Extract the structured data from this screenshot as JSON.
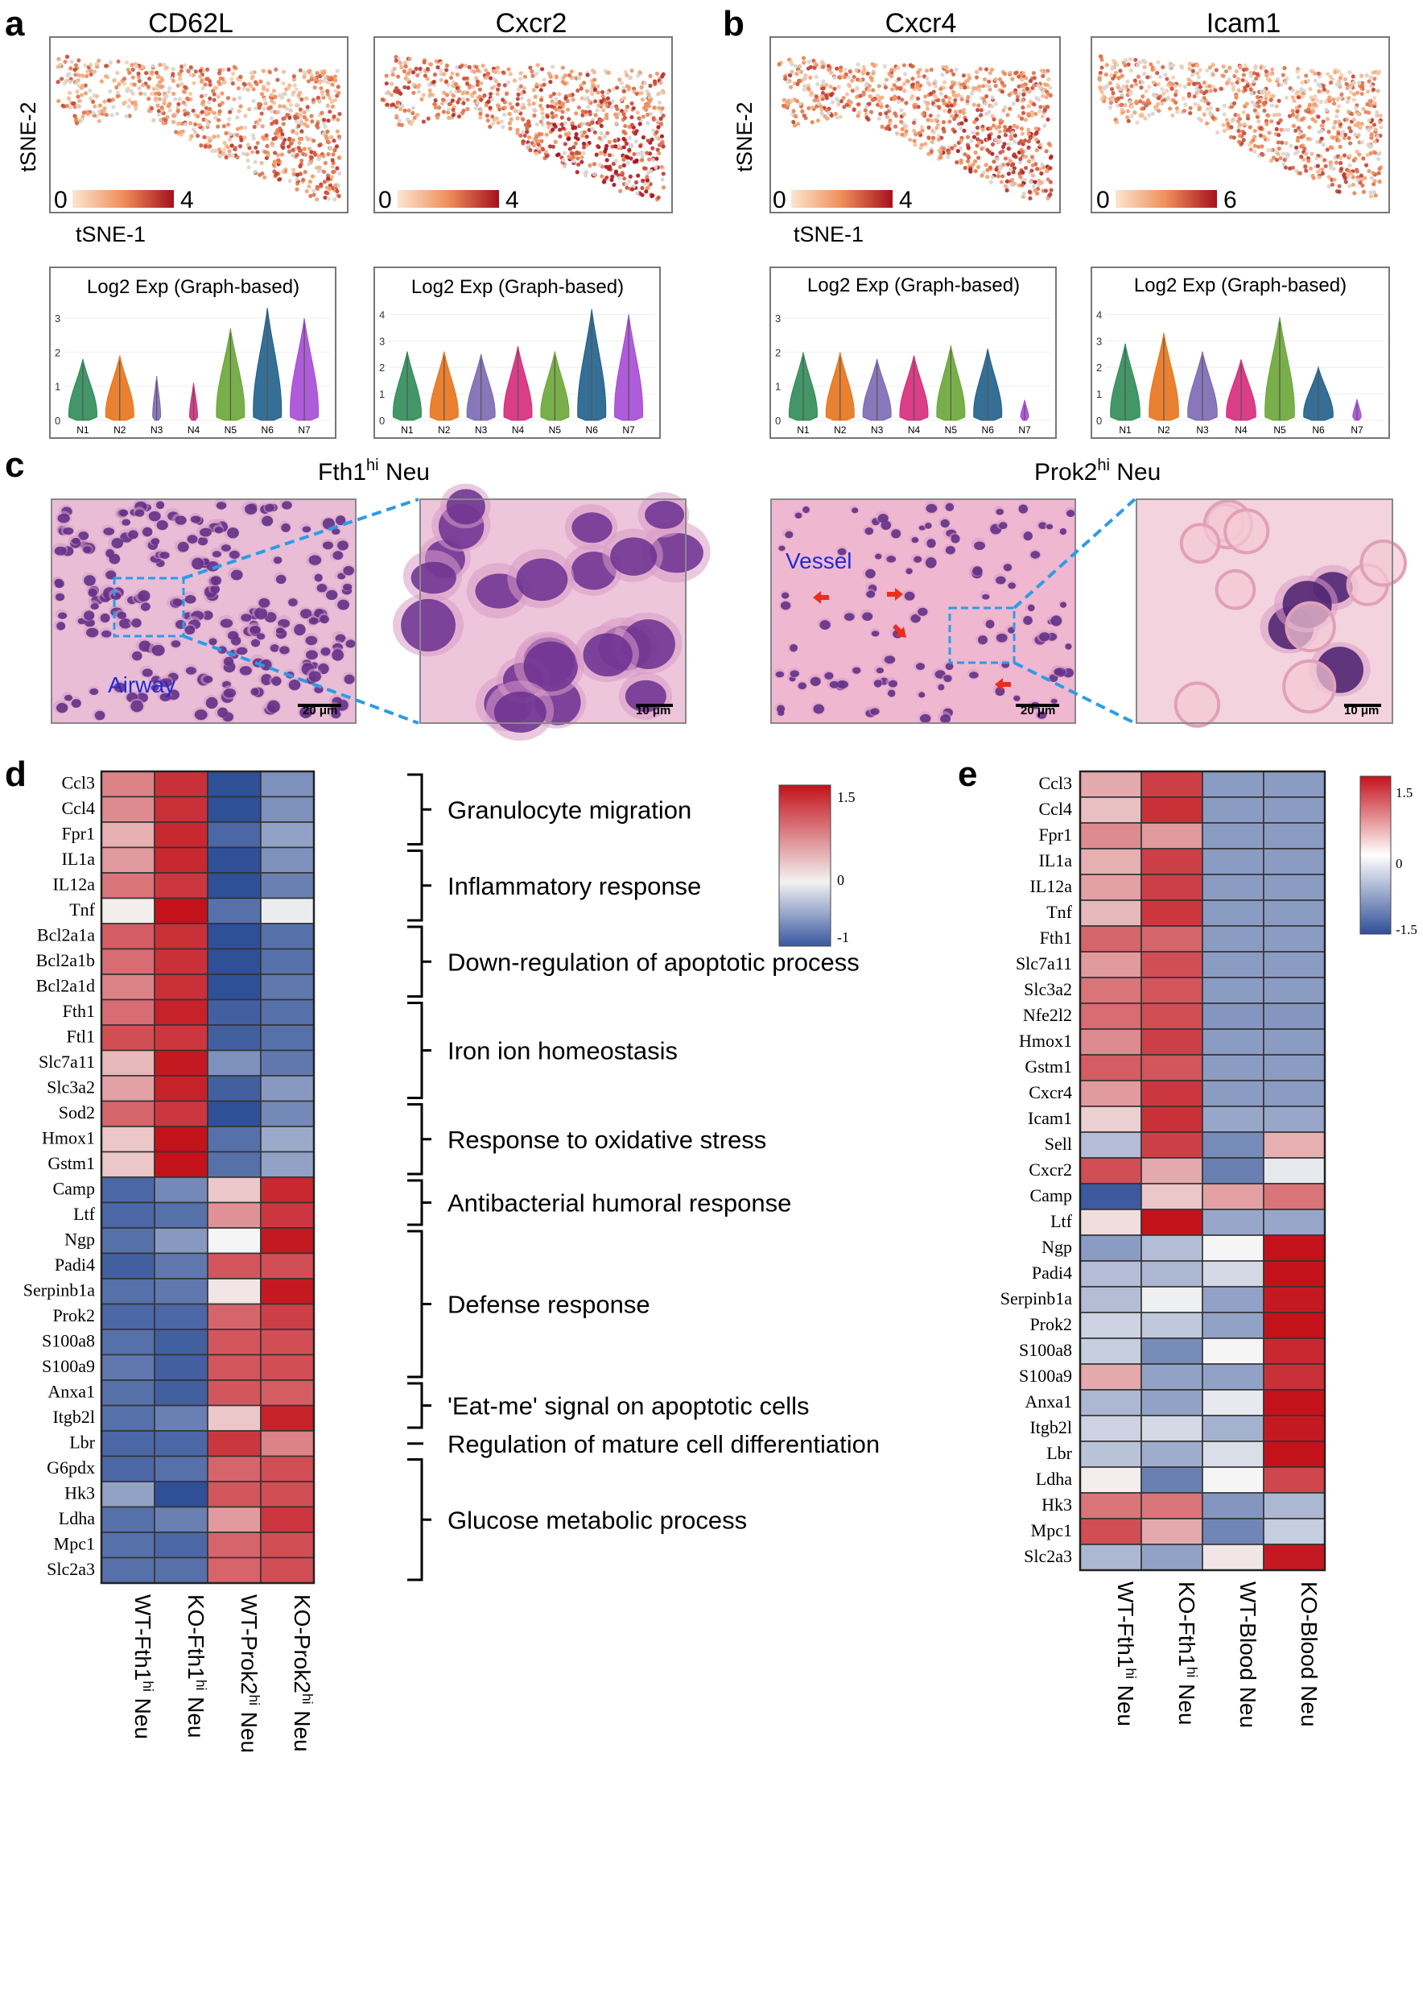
{
  "panels": {
    "a": {
      "letter": "a",
      "genes": [
        {
          "name": "CD62L",
          "cbar_min": "0",
          "cbar_max": "4"
        },
        {
          "name": "Cxcr2",
          "cbar_min": "0",
          "cbar_max": "4"
        }
      ],
      "ylabel": "tSNE-2",
      "xlabel": "tSNE-1",
      "violins": [
        {
          "title": "Log2 Exp (Graph-based)",
          "yticks": [
            "0",
            "1",
            "2",
            "3"
          ],
          "ymax": 3.5,
          "heights": [
            1.8,
            1.9,
            1.3,
            1.1,
            2.7,
            3.3,
            3.0
          ]
        },
        {
          "title": "Log2 Exp (Graph-based)",
          "yticks": [
            "0",
            "1",
            "2",
            "3",
            "4"
          ],
          "ymax": 4.5,
          "heights": [
            2.6,
            2.6,
            2.5,
            2.8,
            2.6,
            4.2,
            4.0
          ]
        }
      ]
    },
    "b": {
      "letter": "b",
      "genes": [
        {
          "name": "Cxcr4",
          "cbar_min": "0",
          "cbar_max": "4"
        },
        {
          "name": "Icam1",
          "cbar_min": "0",
          "cbar_max": "6"
        }
      ],
      "ylabel": "tSNE-2",
      "xlabel": "tSNE-1",
      "violins": [
        {
          "title": "Log2 Exp (Graph-based)",
          "yticks": [
            "0",
            "1",
            "2",
            "3"
          ],
          "ymax": 3.5,
          "heights": [
            2.0,
            2.0,
            1.8,
            1.9,
            2.2,
            2.1,
            0.6
          ]
        },
        {
          "title": "Log2 Exp (Graph-based)",
          "yticks": [
            "0",
            "1",
            "2",
            "3",
            "4"
          ],
          "ymax": 4.5,
          "heights": [
            2.9,
            3.3,
            2.6,
            2.3,
            3.9,
            2.0,
            0.8
          ]
        }
      ]
    },
    "cluster_labels": [
      "N1",
      "N2",
      "N3",
      "N4",
      "N5",
      "N6",
      "N7"
    ],
    "cluster_colors": [
      "#2e8b57",
      "#e8731a",
      "#7b68b3",
      "#d6297a",
      "#6aa636",
      "#1f5f8b",
      "#a64ad6"
    ],
    "c": {
      "letter": "c",
      "left_title_main": "Fth1",
      "left_title_sup": "hi",
      "left_title_end": " Neu",
      "right_title_main": "Prok2",
      "right_title_sup": "hi",
      "right_title_end": " Neu",
      "airway": "Airway",
      "vessel": "Vessel",
      "scale_20": "20 μm",
      "scale_10": "10 μm"
    },
    "d": {
      "letter": "d",
      "columns": [
        {
          "main": "WT-Fth1",
          "sup": "hi",
          "end": " Neu"
        },
        {
          "main": "KO-Fth1",
          "sup": "hi",
          "end": " Neu"
        },
        {
          "main": "WT-Prok2",
          "sup": "hi",
          "end": " Neu"
        },
        {
          "main": "KO-Prok2",
          "sup": "hi",
          "end": " Neu"
        }
      ],
      "colorbar": {
        "max": "1.5",
        "mid": "0",
        "min": "-1"
      },
      "genes": [
        "Ccl3",
        "Ccl4",
        "Fpr1",
        "IL1a",
        "IL12a",
        "Tnf",
        "Bcl2a1a",
        "Bcl2a1b",
        "Bcl2a1d",
        "Fth1",
        "Ftl1",
        "Slc7a11",
        "Slc3a2",
        "Sod2",
        "Hmox1",
        "Gstm1",
        "Camp",
        "Ltf",
        "Ngp",
        "Padi4",
        "Serpinb1a",
        "Prok2",
        "S100a8",
        "S100a9",
        "Anxa1",
        "Itgb2l",
        "Lbr",
        "G6pdx",
        "Hk3",
        "Ldha",
        "Mpc1",
        "Slc2a3"
      ],
      "values": [
        [
          0.75,
          1.3,
          -1.0,
          -0.6
        ],
        [
          0.7,
          1.3,
          -1.0,
          -0.6
        ],
        [
          0.45,
          1.35,
          -0.85,
          -0.5
        ],
        [
          0.6,
          1.35,
          -1.0,
          -0.6
        ],
        [
          0.85,
          1.25,
          -1.0,
          -0.7
        ],
        [
          0.05,
          1.5,
          -0.8,
          -0.05
        ],
        [
          1.0,
          1.3,
          -1.0,
          -0.8
        ],
        [
          0.9,
          1.3,
          -1.0,
          -0.8
        ],
        [
          0.75,
          1.3,
          -1.0,
          -0.75
        ],
        [
          0.9,
          1.4,
          -0.9,
          -0.8
        ],
        [
          1.1,
          1.25,
          -0.9,
          -0.8
        ],
        [
          0.4,
          1.45,
          -0.6,
          -0.75
        ],
        [
          0.55,
          1.4,
          -0.9,
          -0.55
        ],
        [
          0.95,
          1.25,
          -1.0,
          -0.65
        ],
        [
          0.3,
          1.5,
          -0.8,
          -0.45
        ],
        [
          0.3,
          1.5,
          -0.8,
          -0.5
        ],
        [
          -0.85,
          -0.65,
          0.3,
          1.35
        ],
        [
          -0.85,
          -0.8,
          0.65,
          1.25
        ],
        [
          -0.8,
          -0.55,
          0.0,
          1.45
        ],
        [
          -0.9,
          -0.75,
          1.05,
          1.1
        ],
        [
          -0.8,
          -0.75,
          0.1,
          1.45
        ],
        [
          -0.85,
          -0.85,
          0.95,
          1.2
        ],
        [
          -0.8,
          -0.9,
          1.05,
          1.1
        ],
        [
          -0.75,
          -0.9,
          1.05,
          1.1
        ],
        [
          -0.8,
          -0.9,
          1.05,
          1.0
        ],
        [
          -0.8,
          -0.7,
          0.3,
          1.4
        ],
        [
          -0.85,
          -0.85,
          1.25,
          0.75
        ],
        [
          -0.85,
          -0.8,
          0.95,
          1.1
        ],
        [
          -0.5,
          -1.0,
          1.05,
          1.1
        ],
        [
          -0.8,
          -0.7,
          0.6,
          1.25
        ],
        [
          -0.8,
          -0.85,
          0.95,
          1.1
        ],
        [
          -0.8,
          -0.8,
          0.95,
          1.1
        ]
      ],
      "annotations": [
        {
          "label": "Granulocyte migration",
          "from": 0,
          "to": 2
        },
        {
          "label": "Inflammatory response",
          "from": 3,
          "to": 5
        },
        {
          "label": "Down-regulation of apoptotic process",
          "from": 6,
          "to": 8
        },
        {
          "label": "Iron ion homeostasis",
          "from": 9,
          "to": 12
        },
        {
          "label": "Response to oxidative stress",
          "from": 13,
          "to": 15
        },
        {
          "label": "Antibacterial humoral response",
          "from": 16,
          "to": 17
        },
        {
          "label": "Defense response",
          "from": 18,
          "to": 23
        },
        {
          "label": "'Eat-me' signal on apoptotic cells",
          "from": 24,
          "to": 25
        },
        {
          "label": "Regulation of mature cell differentiation",
          "from": 26,
          "to": 26
        },
        {
          "label": "Glucose metabolic process",
          "from": 27,
          "to": 31
        }
      ]
    },
    "e": {
      "letter": "e",
      "columns": [
        {
          "main": "WT-Fth1",
          "sup": "hi",
          "end": " Neu"
        },
        {
          "main": "KO-Fth1",
          "sup": "hi",
          "end": " Neu"
        },
        {
          "main": "WT-Blood Neu",
          "sup": "",
          "end": ""
        },
        {
          "main": "KO-Blood Neu",
          "sup": "",
          "end": ""
        }
      ],
      "colorbar": {
        "max": "1.5",
        "mid": "0",
        "min": "-1.5"
      },
      "genes": [
        "Ccl3",
        "Ccl4",
        "Fpr1",
        "IL1a",
        "IL12a",
        "Tnf",
        "Fth1",
        "Slc7a11",
        "Slc3a2",
        "Nfe2l2",
        "Hmox1",
        "Gstm1",
        "Cxcr4",
        "Icam1",
        "Sell",
        "Cxcr2",
        "Camp",
        "Ltf",
        "Ngp",
        "Padi4",
        "Serpinb1a",
        "Prok2",
        "S100a8",
        "S100a9",
        "Anxa1",
        "Itgb2l",
        "Lbr",
        "Ldha",
        "Hk3",
        "Mpc1",
        "Slc2a3"
      ],
      "values": [
        [
          0.5,
          1.2,
          -0.8,
          -0.8
        ],
        [
          0.35,
          1.3,
          -0.8,
          -0.8
        ],
        [
          0.7,
          0.6,
          -0.8,
          -0.8
        ],
        [
          0.45,
          1.2,
          -0.8,
          -0.8
        ],
        [
          0.55,
          1.2,
          -0.8,
          -0.8
        ],
        [
          0.4,
          1.25,
          -0.8,
          -0.8
        ],
        [
          0.95,
          0.95,
          -0.8,
          -0.8
        ],
        [
          0.6,
          1.1,
          -0.8,
          -0.8
        ],
        [
          0.85,
          1.05,
          -0.8,
          -0.8
        ],
        [
          0.9,
          1.1,
          -0.85,
          -0.85
        ],
        [
          0.7,
          1.2,
          -0.8,
          -0.8
        ],
        [
          1.0,
          1.05,
          -0.8,
          -0.8
        ],
        [
          0.6,
          1.25,
          -0.8,
          -0.8
        ],
        [
          0.25,
          1.3,
          -0.7,
          -0.7
        ],
        [
          -0.5,
          1.2,
          -0.95,
          0.45
        ],
        [
          1.1,
          0.5,
          -1.05,
          -0.1
        ],
        [
          -1.4,
          0.3,
          0.55,
          0.85
        ],
        [
          0.15,
          1.5,
          -0.7,
          -0.7
        ],
        [
          -0.8,
          -0.5,
          0.0,
          1.5
        ],
        [
          -0.5,
          -0.55,
          -0.25,
          1.5
        ],
        [
          -0.5,
          -0.05,
          -0.75,
          1.45
        ],
        [
          -0.3,
          -0.4,
          -0.75,
          1.5
        ],
        [
          -0.35,
          -0.95,
          0.0,
          1.35
        ],
        [
          0.5,
          -0.75,
          -0.75,
          1.3
        ],
        [
          -0.55,
          -0.75,
          -0.1,
          1.5
        ],
        [
          -0.3,
          -0.25,
          -0.6,
          1.45
        ],
        [
          -0.45,
          -0.65,
          -0.2,
          1.5
        ],
        [
          0.05,
          -1.05,
          0.0,
          1.15
        ],
        [
          0.85,
          0.85,
          -0.85,
          -0.55
        ],
        [
          1.1,
          0.5,
          -1.0,
          -0.35
        ],
        [
          -0.55,
          -0.75,
          0.1,
          1.45
        ]
      ]
    }
  }
}
